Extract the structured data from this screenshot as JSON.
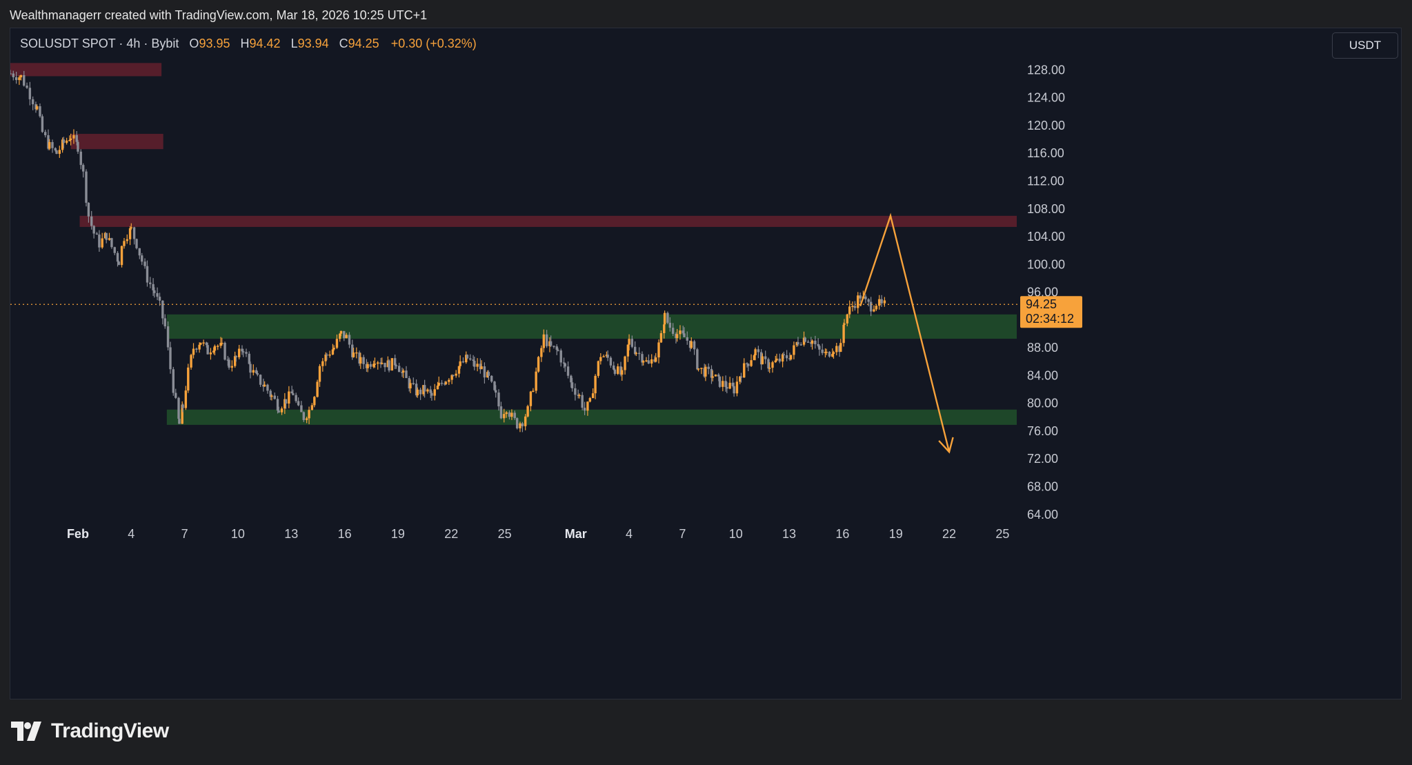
{
  "header": {
    "credit": "Wealthmanagerr created with TradingView.com, Mar 18, 2026 10:25 UTC+1"
  },
  "legend": {
    "symbol": "SOLUSDT SPOT · 4h · Bybit",
    "open_label": "O",
    "open_value": "93.95",
    "high_label": "H",
    "high_value": "94.42",
    "low_label": "L",
    "low_value": "93.94",
    "close_label": "C",
    "close_value": "94.25",
    "change": "+0.30 (+0.32%)"
  },
  "currency_button": "USDT",
  "price_tag": {
    "price": "94.25",
    "countdown": "02:34:12"
  },
  "brand": {
    "name": "TradingView"
  },
  "colors": {
    "bull": "#f7a23b",
    "bear": "#8a8d96",
    "supply_zone": "#5a1f2c",
    "demand_zone": "#1f4a2a",
    "projection": "#f7a23b",
    "background": "#131722"
  },
  "chart_data": {
    "type": "candlestick",
    "title": "SOLUSDT SPOT · 4h · Bybit",
    "ylim": [
      61,
      134
    ],
    "y_ticks": [
      "128.00",
      "124.00",
      "120.00",
      "116.00",
      "112.00",
      "108.00",
      "104.00",
      "100.00",
      "96.00",
      "88.00",
      "84.00",
      "80.00",
      "76.00",
      "72.00",
      "68.00",
      "64.00"
    ],
    "x_ticks": [
      {
        "label": "Feb",
        "t": 6,
        "bold": true
      },
      {
        "label": "4",
        "t": 9
      },
      {
        "label": "7",
        "t": 12
      },
      {
        "label": "10",
        "t": 15
      },
      {
        "label": "13",
        "t": 18
      },
      {
        "label": "16",
        "t": 21
      },
      {
        "label": "19",
        "t": 24
      },
      {
        "label": "22",
        "t": 27
      },
      {
        "label": "25",
        "t": 30
      },
      {
        "label": "Mar",
        "t": 34,
        "bold": true
      },
      {
        "label": "4",
        "t": 37
      },
      {
        "label": "7",
        "t": 40
      },
      {
        "label": "10",
        "t": 43
      },
      {
        "label": "13",
        "t": 46
      },
      {
        "label": "16",
        "t": 49
      },
      {
        "label": "19",
        "t": 52
      },
      {
        "label": "22",
        "t": 55
      },
      {
        "label": "25",
        "t": 58
      }
    ],
    "x_range": [
      2.2,
      58.8
    ],
    "last_price": 94.25,
    "zones": [
      {
        "kind": "supply",
        "t_start": 2.2,
        "t_end": 10.7,
        "low": 127.1,
        "high": 129.0
      },
      {
        "kind": "supply",
        "t_start": 5.6,
        "t_end": 10.8,
        "low": 116.6,
        "high": 118.8
      },
      {
        "kind": "supply",
        "t_start": 6.1,
        "t_end": 58.8,
        "low": 105.4,
        "high": 107.0
      },
      {
        "kind": "demand",
        "t_start": 11.0,
        "t_end": 58.8,
        "low": 89.3,
        "high": 92.8
      },
      {
        "kind": "demand",
        "t_start": 11.0,
        "t_end": 58.8,
        "low": 76.9,
        "high": 79.1
      }
    ],
    "projection": [
      {
        "t": 50.0,
        "price": 94.0
      },
      {
        "t": 51.7,
        "price": 107.0
      },
      {
        "t": 55.0,
        "price": 73.0
      }
    ],
    "path": [
      [
        2.2,
        127.5
      ],
      [
        2.8,
        127.0
      ],
      [
        3.3,
        124.5
      ],
      [
        3.7,
        122.5
      ],
      [
        4.0,
        119.0
      ],
      [
        4.4,
        117.0
      ],
      [
        4.8,
        116.0
      ],
      [
        5.2,
        117.5
      ],
      [
        5.6,
        118.5
      ],
      [
        6.0,
        117.0
      ],
      [
        6.3,
        113.0
      ],
      [
        6.6,
        107.0
      ],
      [
        6.9,
        104.5
      ],
      [
        7.2,
        103.0
      ],
      [
        7.6,
        104.2
      ],
      [
        7.9,
        102.5
      ],
      [
        8.3,
        100.5
      ],
      [
        8.6,
        104.0
      ],
      [
        9.0,
        105.0
      ],
      [
        9.3,
        103.0
      ],
      [
        9.6,
        100.5
      ],
      [
        9.9,
        98.0
      ],
      [
        10.3,
        96.0
      ],
      [
        10.6,
        94.0
      ],
      [
        10.9,
        91.0
      ],
      [
        11.2,
        85.0
      ],
      [
        11.5,
        80.0
      ],
      [
        11.7,
        77.0
      ],
      [
        11.9,
        79.5
      ],
      [
        12.2,
        84.5
      ],
      [
        12.5,
        88.0
      ],
      [
        12.9,
        89.0
      ],
      [
        13.3,
        87.5
      ],
      [
        13.7,
        88.5
      ],
      [
        14.1,
        88.0
      ],
      [
        14.5,
        85.5
      ],
      [
        14.9,
        86.5
      ],
      [
        15.3,
        88.0
      ],
      [
        15.7,
        85.0
      ],
      [
        16.1,
        83.5
      ],
      [
        16.5,
        82.5
      ],
      [
        16.9,
        81.0
      ],
      [
        17.3,
        79.5
      ],
      [
        17.7,
        80.5
      ],
      [
        18.1,
        81.5
      ],
      [
        18.4,
        79.0
      ],
      [
        18.7,
        78.0
      ],
      [
        19.0,
        79.0
      ],
      [
        19.3,
        81.5
      ],
      [
        19.6,
        85.5
      ],
      [
        20.0,
        87.0
      ],
      [
        20.4,
        88.0
      ],
      [
        20.8,
        90.0
      ],
      [
        21.1,
        89.5
      ],
      [
        21.5,
        87.0
      ],
      [
        21.9,
        86.0
      ],
      [
        22.3,
        85.5
      ],
      [
        22.7,
        86.5
      ],
      [
        23.1,
        86.0
      ],
      [
        23.5,
        85.5
      ],
      [
        23.9,
        86.0
      ],
      [
        24.3,
        84.0
      ],
      [
        24.7,
        82.5
      ],
      [
        25.1,
        81.5
      ],
      [
        25.5,
        82.0
      ],
      [
        25.9,
        81.0
      ],
      [
        26.3,
        82.5
      ],
      [
        26.7,
        83.5
      ],
      [
        27.1,
        84.5
      ],
      [
        27.5,
        85.5
      ],
      [
        27.9,
        86.5
      ],
      [
        28.3,
        85.5
      ],
      [
        28.7,
        85.0
      ],
      [
        29.1,
        83.5
      ],
      [
        29.5,
        81.0
      ],
      [
        29.8,
        78.5
      ],
      [
        30.1,
        79.5
      ],
      [
        30.4,
        78.0
      ],
      [
        30.7,
        77.0
      ],
      [
        31.0,
        77.5
      ],
      [
        31.3,
        79.0
      ],
      [
        31.6,
        82.5
      ],
      [
        31.9,
        86.0
      ],
      [
        32.2,
        89.5
      ],
      [
        32.6,
        88.0
      ],
      [
        33.0,
        87.5
      ],
      [
        33.4,
        85.0
      ],
      [
        33.8,
        82.5
      ],
      [
        34.2,
        81.0
      ],
      [
        34.5,
        79.0
      ],
      [
        34.8,
        80.0
      ],
      [
        35.1,
        84.0
      ],
      [
        35.4,
        87.0
      ],
      [
        35.8,
        86.5
      ],
      [
        36.2,
        85.0
      ],
      [
        36.6,
        84.0
      ],
      [
        37.0,
        89.0
      ],
      [
        37.4,
        87.5
      ],
      [
        37.8,
        86.5
      ],
      [
        38.1,
        85.5
      ],
      [
        38.5,
        87.0
      ],
      [
        38.8,
        89.5
      ],
      [
        39.0,
        92.5
      ],
      [
        39.3,
        91.0
      ],
      [
        39.7,
        90.0
      ],
      [
        40.1,
        89.5
      ],
      [
        40.5,
        88.5
      ],
      [
        40.9,
        85.0
      ],
      [
        41.3,
        84.5
      ],
      [
        41.7,
        84.0
      ],
      [
        42.1,
        83.0
      ],
      [
        42.5,
        82.5
      ],
      [
        42.9,
        82.0
      ],
      [
        43.3,
        84.5
      ],
      [
        43.7,
        86.0
      ],
      [
        44.1,
        87.5
      ],
      [
        44.5,
        86.0
      ],
      [
        44.9,
        85.5
      ],
      [
        45.3,
        86.0
      ],
      [
        45.7,
        86.5
      ],
      [
        46.1,
        87.0
      ],
      [
        46.5,
        89.0
      ],
      [
        46.9,
        89.5
      ],
      [
        47.3,
        89.0
      ],
      [
        47.7,
        87.5
      ],
      [
        48.1,
        87.0
      ],
      [
        48.5,
        88.0
      ],
      [
        48.9,
        88.0
      ],
      [
        49.1,
        92.0
      ],
      [
        49.4,
        93.5
      ],
      [
        49.7,
        94.5
      ],
      [
        50.0,
        95.5
      ],
      [
        50.3,
        94.5
      ],
      [
        50.6,
        94.0
      ],
      [
        50.9,
        94.5
      ],
      [
        51.2,
        94.0
      ],
      [
        51.5,
        94.25
      ]
    ]
  }
}
